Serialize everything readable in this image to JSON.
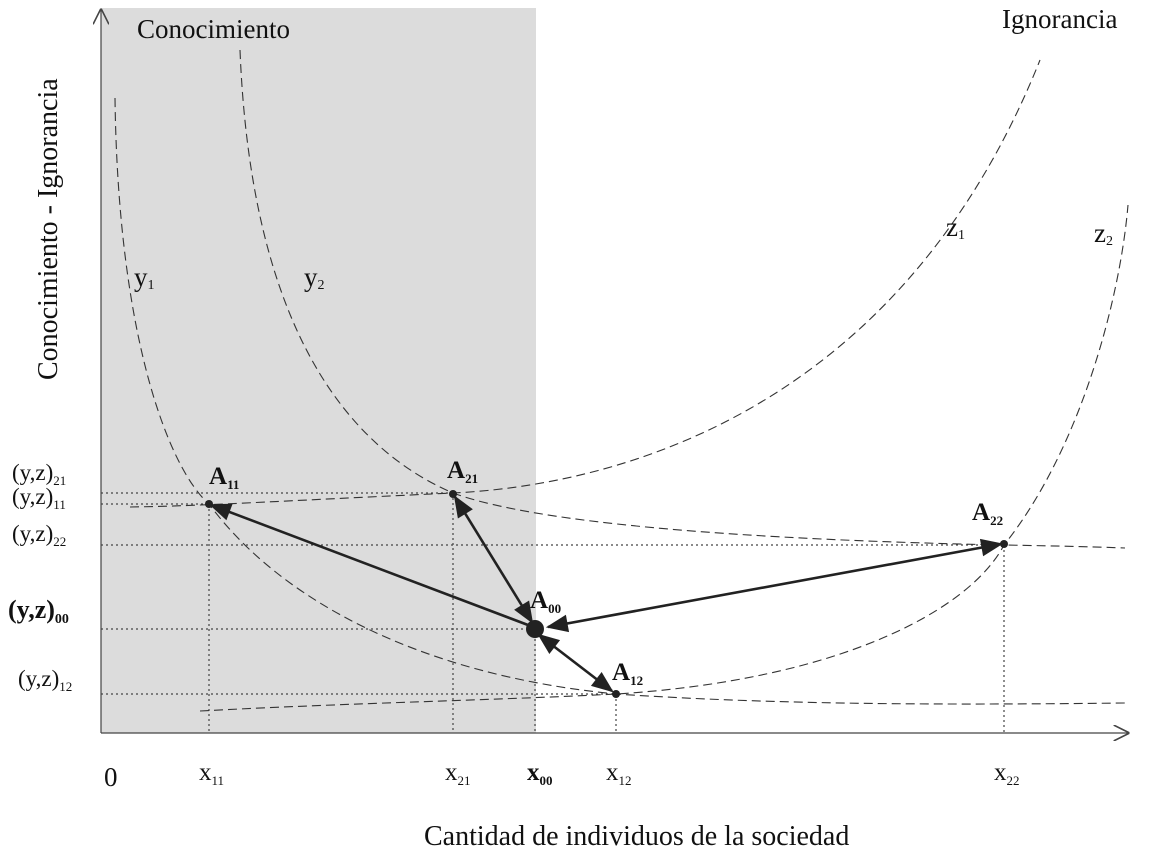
{
  "axes": {
    "y_title": "Conocimiento - Ignorancia",
    "x_title": "Cantidad de individuos de la sociedad",
    "origin": "0"
  },
  "regions": {
    "knowledge": "Conocimiento",
    "ignorance": "Ignorancia"
  },
  "curves": {
    "y1": {
      "base": "y",
      "sub": "1"
    },
    "y2": {
      "base": "y",
      "sub": "2"
    },
    "z1": {
      "base": "z",
      "sub": "1"
    },
    "z2": {
      "base": "z",
      "sub": "2"
    }
  },
  "y_levels": [
    {
      "id": "21",
      "base": "(y,z)",
      "sub": "21",
      "bold": false
    },
    {
      "id": "11",
      "base": "(y,z)",
      "sub": "11",
      "bold": false
    },
    {
      "id": "22",
      "base": "(y,z)",
      "sub": "22",
      "bold": false
    },
    {
      "id": "00",
      "base": "(y,z)",
      "sub": "00",
      "bold": true
    },
    {
      "id": "12",
      "base": "(y,z)",
      "sub": "12",
      "bold": false
    }
  ],
  "x_ticks": [
    {
      "id": "11",
      "base": "x",
      "sub": "11",
      "bold": false
    },
    {
      "id": "21",
      "base": "x",
      "sub": "21",
      "bold": false
    },
    {
      "id": "00",
      "base": "x",
      "sub": "00",
      "bold": true
    },
    {
      "id": "12",
      "base": "x",
      "sub": "12",
      "bold": false
    },
    {
      "id": "22",
      "base": "x",
      "sub": "22",
      "bold": false
    }
  ],
  "points": [
    {
      "id": "A11",
      "base": "A",
      "sub": "11"
    },
    {
      "id": "A21",
      "base": "A",
      "sub": "21"
    },
    {
      "id": "A22",
      "base": "A",
      "sub": "22"
    },
    {
      "id": "A00",
      "base": "A",
      "sub": "00"
    },
    {
      "id": "A12",
      "base": "A",
      "sub": "12"
    }
  ],
  "colors": {
    "shade": "#dcdcdc",
    "ink": "#222222"
  }
}
